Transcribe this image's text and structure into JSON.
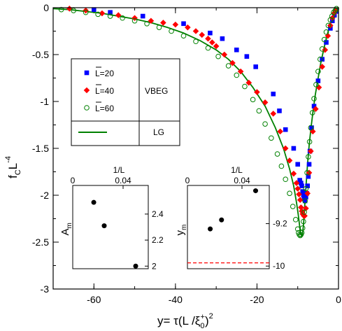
{
  "chart_data": {
    "type": "scatter",
    "xlabel_main": "y= τ(L /ξ",
    "xlabel_sub": "0",
    "xlabel_sup": "+",
    "xlabel_end": ")",
    "xlabel_exp": "2",
    "ylabel_main": "f",
    "ylabel_sub": "C",
    "ylabel_end": "L",
    "ylabel_exp": "-4",
    "xlim": [
      -70,
      0
    ],
    "ylim": [
      -3,
      0
    ],
    "xticks": [
      {
        "v": -60,
        "label": "-60"
      },
      {
        "v": -40,
        "label": "-40"
      },
      {
        "v": -20,
        "label": "-20"
      },
      {
        "v": 0,
        "label": "0"
      }
    ],
    "yticks": [
      {
        "v": 0,
        "label": "0"
      },
      {
        "v": -0.5,
        "label": "-0.5"
      },
      {
        "v": -1,
        "label": "-1"
      },
      {
        "v": -1.5,
        "label": "-1.5"
      },
      {
        "v": -2,
        "label": "-2"
      },
      {
        "v": -2.5,
        "label": "-2.5"
      },
      {
        "v": -3,
        "label": "-3"
      }
    ],
    "legend": {
      "entries": [
        {
          "label": "L=20",
          "marker": "square",
          "color": "#0000ff"
        },
        {
          "label": "L=40",
          "marker": "diamond",
          "color": "#ff0000"
        },
        {
          "label": "L=60",
          "marker": "circle",
          "color": "#008000"
        }
      ],
      "group1": "VBEG",
      "line_entry_color": "#008000",
      "group2": "LG"
    },
    "series": [
      {
        "name": "L=20",
        "marker": "square",
        "color": "#0000ff",
        "x": [
          -60,
          -56,
          -48,
          -38,
          -31.5,
          -28.5,
          -25,
          -22.5,
          -20.3,
          -16,
          -14.5,
          -13,
          -11,
          -10,
          -9.5,
          -9.2,
          -9,
          -8.8,
          -8.6,
          -8.4,
          -8.2,
          -8,
          -7.8,
          -7.6,
          -7.4,
          -7.2,
          -7,
          -6.6,
          -6,
          -5,
          -4,
          -3,
          -2,
          -1.5,
          -1,
          -0.6
        ],
        "y": [
          -0.02,
          -0.05,
          -0.09,
          -0.17,
          -0.27,
          -0.33,
          -0.45,
          -0.52,
          -0.63,
          -0.92,
          -1.1,
          -1.3,
          -1.5,
          -1.67,
          -1.84,
          -1.87,
          -1.9,
          -1.96,
          -2.0,
          -2.04,
          -2.06,
          -2.02,
          -1.98,
          -1.9,
          -1.8,
          -1.67,
          -1.53,
          -1.28,
          -1.05,
          -0.78,
          -0.55,
          -0.37,
          -0.22,
          -0.14,
          -0.08,
          -0.04
        ]
      },
      {
        "name": "L=40",
        "marker": "diamond",
        "color": "#ff0000",
        "x": [
          -66,
          -62,
          -58,
          -54,
          -50,
          -46,
          -43,
          -40,
          -37,
          -35,
          -33.5,
          -32,
          -31,
          -30,
          -28,
          -26,
          -24,
          -22,
          -20,
          -18,
          -16,
          -14.3,
          -13,
          -12,
          -11,
          -10.3,
          -10,
          -9.7,
          -9.4,
          -9.2,
          -9,
          -8.8,
          -8.5,
          -8.3,
          -8,
          -7.6,
          -7.2,
          -6.8,
          -6.3,
          -5.6,
          -4.8,
          -4,
          -3.3,
          -2.6,
          -2,
          -1.5,
          -1.1,
          -0.7
        ],
        "y": [
          -0.01,
          -0.03,
          -0.06,
          -0.08,
          -0.11,
          -0.14,
          -0.16,
          -0.18,
          -0.21,
          -0.25,
          -0.29,
          -0.33,
          -0.37,
          -0.41,
          -0.5,
          -0.59,
          -0.68,
          -0.8,
          -0.9,
          -1.01,
          -1.13,
          -1.32,
          -1.5,
          -1.63,
          -1.77,
          -1.87,
          -1.93,
          -1.99,
          -2.05,
          -2.13,
          -2.17,
          -2.2,
          -2.22,
          -2.22,
          -2.14,
          -1.98,
          -1.76,
          -1.53,
          -1.32,
          -1.08,
          -0.85,
          -0.63,
          -0.45,
          -0.3,
          -0.19,
          -0.11,
          -0.06,
          -0.03
        ]
      },
      {
        "name": "L=60",
        "marker": "circle",
        "color": "#008000",
        "x": [
          -68,
          -65,
          -62,
          -59,
          -56,
          -53,
          -50,
          -47,
          -44,
          -41,
          -38,
          -35,
          -32,
          -29.5,
          -27,
          -25,
          -23,
          -21,
          -19.5,
          -18,
          -16.5,
          -15,
          -14,
          -13,
          -12,
          -11.2,
          -10.5,
          -10,
          -9.8,
          -9.6,
          -9.4,
          -9.2,
          -9,
          -8.8,
          -8.6,
          -8.4,
          -8.2,
          -8,
          -7.7,
          -7.4,
          -7.1,
          -6.8,
          -6.4,
          -6,
          -5.5,
          -5,
          -4.5,
          -4,
          -3.5,
          -3,
          -2.5,
          -2,
          -1.6,
          -1.2,
          -0.8,
          -0.5
        ],
        "y": [
          -0.02,
          -0.03,
          -0.05,
          -0.07,
          -0.09,
          -0.11,
          -0.14,
          -0.17,
          -0.21,
          -0.25,
          -0.3,
          -0.36,
          -0.43,
          -0.52,
          -0.62,
          -0.72,
          -0.84,
          -0.98,
          -1.1,
          -1.24,
          -1.39,
          -1.56,
          -1.69,
          -1.83,
          -1.98,
          -2.12,
          -2.26,
          -2.36,
          -2.4,
          -2.42,
          -2.43,
          -2.42,
          -2.4,
          -2.35,
          -2.28,
          -2.18,
          -2.06,
          -1.93,
          -1.76,
          -1.59,
          -1.43,
          -1.28,
          -1.12,
          -0.97,
          -0.82,
          -0.68,
          -0.55,
          -0.44,
          -0.34,
          -0.26,
          -0.19,
          -0.13,
          -0.09,
          -0.05,
          -0.03,
          -0.01
        ]
      },
      {
        "name": "LG",
        "type": "line",
        "color": "#008000",
        "x": [
          -70,
          -66,
          -62,
          -58,
          -54,
          -50,
          -46,
          -42,
          -38,
          -34,
          -30,
          -27,
          -24,
          -21,
          -18,
          -15.5,
          -13.5,
          -12,
          -11,
          -10.3,
          -9.9,
          -9.6,
          -9.4,
          -9.2,
          -9,
          -8.8,
          -8.6,
          -8.4,
          -8.2,
          -8,
          -7.6,
          -7.2,
          -6.8,
          -6.3,
          -5.7,
          -5,
          -4.3,
          -3.6,
          -3,
          -2.4,
          -1.9,
          -1.4,
          -1,
          -0.6,
          -0.3,
          0
        ],
        "y": [
          -0.01,
          -0.02,
          -0.04,
          -0.06,
          -0.09,
          -0.12,
          -0.16,
          -0.21,
          -0.27,
          -0.35,
          -0.45,
          -0.55,
          -0.68,
          -0.85,
          -1.05,
          -1.28,
          -1.5,
          -1.72,
          -1.9,
          -2.08,
          -2.2,
          -2.3,
          -2.38,
          -2.42,
          -2.43,
          -2.4,
          -2.32,
          -2.2,
          -2.05,
          -1.92,
          -1.67,
          -1.47,
          -1.3,
          -1.12,
          -0.93,
          -0.75,
          -0.58,
          -0.44,
          -0.33,
          -0.23,
          -0.16,
          -0.1,
          -0.06,
          -0.03,
          -0.01,
          0
        ]
      }
    ],
    "insets": [
      {
        "top_label": "1/L",
        "xlim": [
          0,
          0.06
        ],
        "xticks": [
          {
            "v": 0,
            "label": "0"
          },
          {
            "v": 0.04,
            "label": "0.04"
          }
        ],
        "ylim": [
          1.98,
          2.62
        ],
        "yticks": [
          {
            "v": 2.0,
            "label": "2"
          },
          {
            "v": 2.2,
            "label": "2.2"
          },
          {
            "v": 2.4,
            "label": "2.4"
          }
        ],
        "ylabel": "A",
        "ylabel_sub": "m",
        "x": [
          0.0167,
          0.025,
          0.05
        ],
        "y": [
          2.49,
          2.31,
          2.0
        ]
      },
      {
        "top_label": "1/L",
        "xlim": [
          0,
          0.06
        ],
        "xticks": [
          {
            "v": 0,
            "label": "0"
          },
          {
            "v": 0.04,
            "label": "0.04"
          }
        ],
        "ylim": [
          -10.05,
          -8.48
        ],
        "yticks": [
          {
            "v": -9.2,
            "label": "-9.2"
          },
          {
            "v": -10,
            "label": "-10"
          }
        ],
        "ylabel": "y",
        "ylabel_sub": "m",
        "x": [
          0.0167,
          0.025,
          0.05
        ],
        "y": [
          -9.3,
          -9.13,
          -8.58
        ],
        "hline": {
          "y": -9.94,
          "color": "#ff0000"
        }
      }
    ]
  }
}
